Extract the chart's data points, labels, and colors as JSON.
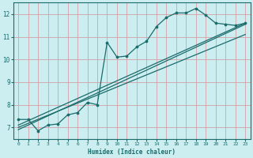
{
  "title": "",
  "xlabel": "Humidex (Indice chaleur)",
  "bg_color": "#cceef0",
  "grid_color": "#d4a0a8",
  "line_color": "#1a6b6b",
  "xlim": [
    -0.5,
    23.5
  ],
  "ylim": [
    6.5,
    12.5
  ],
  "yticks": [
    7,
    8,
    9,
    10,
    11,
    12
  ],
  "xticks": [
    0,
    1,
    2,
    3,
    4,
    5,
    6,
    7,
    8,
    9,
    10,
    11,
    12,
    13,
    14,
    15,
    16,
    17,
    18,
    19,
    20,
    21,
    22,
    23
  ],
  "curve_x": [
    0,
    1,
    2,
    3,
    4,
    5,
    6,
    7,
    8,
    9,
    10,
    11,
    12,
    13,
    14,
    15,
    16,
    17,
    18,
    19,
    20,
    21,
    22,
    23
  ],
  "curve_y": [
    7.35,
    7.35,
    6.85,
    7.1,
    7.15,
    7.55,
    7.65,
    8.1,
    8.0,
    10.75,
    10.1,
    10.15,
    10.55,
    10.8,
    11.45,
    11.85,
    12.05,
    12.05,
    12.25,
    11.95,
    11.6,
    11.55,
    11.5,
    11.6
  ],
  "line1_x": [
    0,
    23
  ],
  "line1_y": [
    7.1,
    11.6
  ],
  "line2_x": [
    0,
    23
  ],
  "line2_y": [
    7.0,
    11.1
  ],
  "line3_x": [
    0,
    23
  ],
  "line3_y": [
    6.9,
    11.55
  ]
}
